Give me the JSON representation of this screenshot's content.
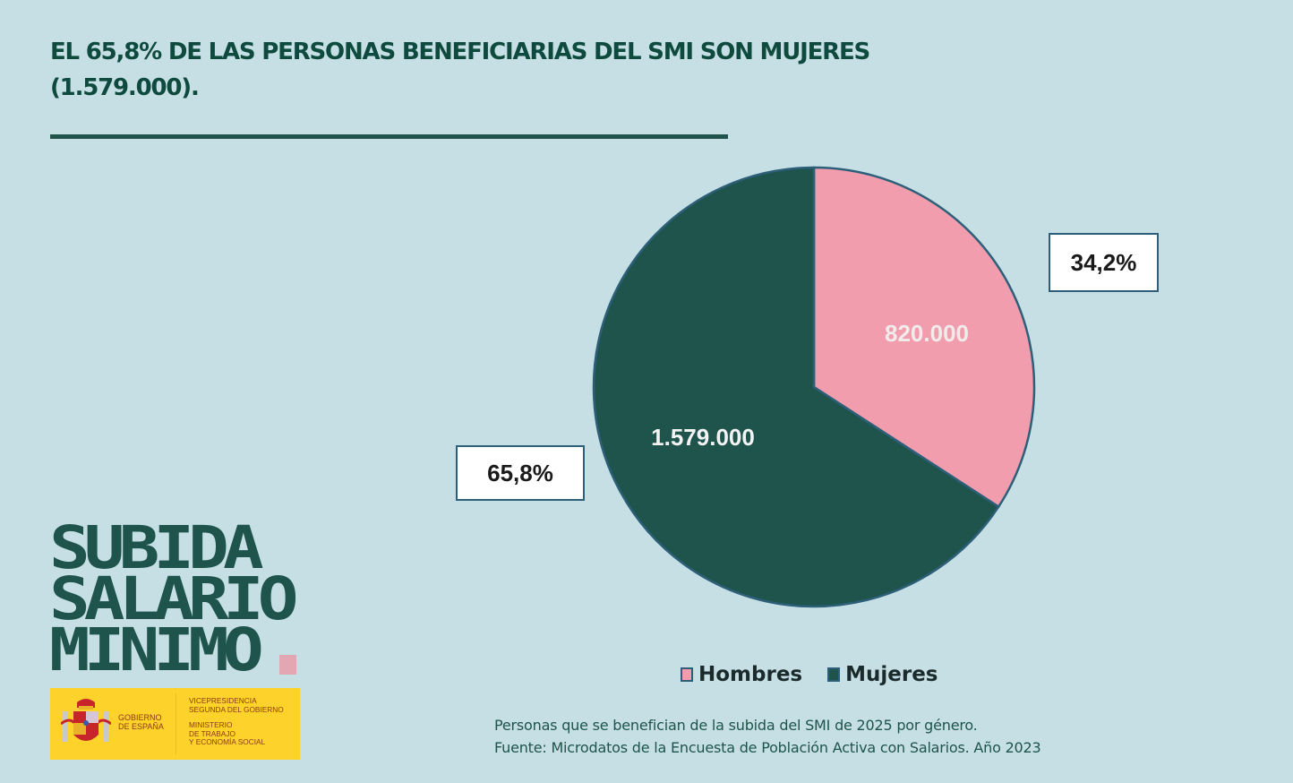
{
  "header": {
    "title_line1": "EL 65,8% DE LAS PERSONAS BENEFICIARIAS DEL SMI SON MUJERES",
    "title_line2": "(1.579.000)."
  },
  "chart_data": {
    "type": "pie",
    "title": "EL 65,8% DE LAS PERSONAS BENEFICIARIAS DEL SMI SON MUJERES (1.579.000).",
    "categories": [
      "Hombres",
      "Mujeres"
    ],
    "values": [
      820000,
      1579000
    ],
    "value_labels": [
      "820.000",
      "1.579.000"
    ],
    "percent_labels": [
      "34,2%",
      "65,8%"
    ],
    "percents": [
      34.2,
      65.8
    ],
    "colors": [
      "#f19dad",
      "#1e544c"
    ],
    "start_angle": "12 o'clock, clockwise",
    "legend_position": "bottom"
  },
  "legend": {
    "items": [
      {
        "label": "Hombres",
        "color": "#f19dad"
      },
      {
        "label": "Mujeres",
        "color": "#1e544c"
      }
    ]
  },
  "caption": {
    "line1": "Personas que se benefician de la subida del SMI de 2025 por género.",
    "line2": "Fuente: Microdatos de la Encuesta de Población Activa con Salarios. Año 2023"
  },
  "logo": {
    "lines": [
      "SUBIDA",
      "SALARIO",
      "MINIMO"
    ],
    "dot_color": "#e3a7b4"
  },
  "gov": {
    "left_line1": "GOBIERNO",
    "left_line2": "DE ESPAÑA",
    "right_line1": "VICEPRESIDENCIA",
    "right_line2": "SEGUNDA DEL GOBIERNO",
    "right_line3": "MINISTERIO",
    "right_line4": "DE TRABAJO",
    "right_line5": "Y ECONOMÍA SOCIAL"
  },
  "colors": {
    "background": "#c5dfe4",
    "accent": "#1e544c",
    "pink": "#f19dad",
    "gov_yellow": "#fdd22a"
  }
}
